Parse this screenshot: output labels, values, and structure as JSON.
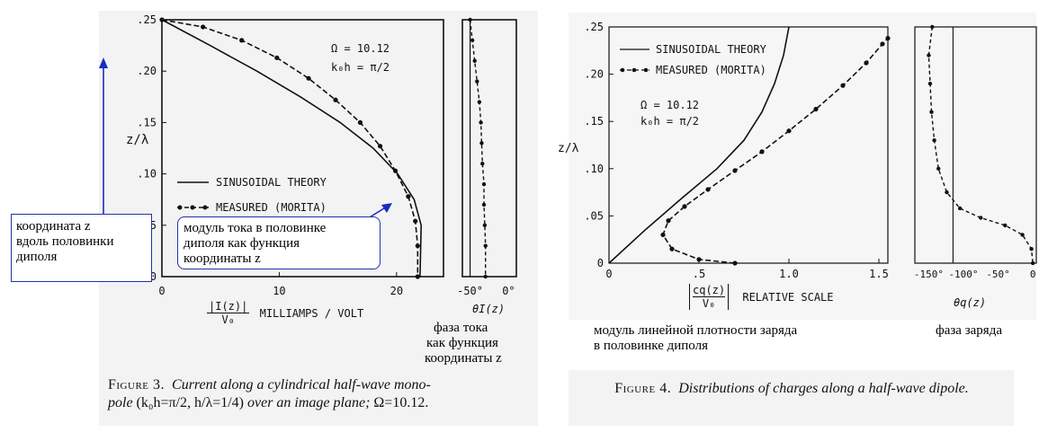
{
  "figure3": {
    "ylabel": "z/λ",
    "yticks": [
      ".25",
      ".20",
      ".15",
      ".10",
      ".05",
      "0"
    ],
    "xticks": [
      "0",
      "10",
      "20"
    ],
    "xlabel_frac_num": "|I(z)|",
    "xlabel_frac_den": "V₀",
    "xlabel_unit": "MILLIAMPS / VOLT",
    "omega": "Ω = 10.12",
    "koh": "k₀h = π/2",
    "legend_theory": "SINUSOIDAL THEORY",
    "legend_measured": "MEASURED (MORITA)",
    "phase_xticks": [
      "-50°",
      "0°"
    ],
    "phase_label": "θI(z)",
    "caption_fig": "Figure 3.",
    "caption_italic1": "Current along a cylindrical half-wave mono-",
    "caption_italic2": "pole",
    "caption_plain": "(k₀h=π/2, h/λ=1/4)",
    "caption_italic3": "over an image plane;",
    "caption_end": "Ω=10.12."
  },
  "figure4": {
    "ylabel": "z/λ",
    "yticks": [
      ".25",
      ".20",
      ".15",
      ".10",
      ".05",
      "0"
    ],
    "xticks": [
      "0",
      ".5",
      "1.0",
      "1.5"
    ],
    "xlabel_frac_num": "cq(z)",
    "xlabel_frac_den": "V₀",
    "xlabel_unit": "RELATIVE SCALE",
    "omega": "Ω = 10.12",
    "koh": "k₀h = π/2",
    "legend_theory": "SINUSOIDAL THEORY",
    "legend_measured": "MEASURED (MORITA)",
    "phase_xticks": [
      "-150°",
      "-100°",
      "-50°",
      "0"
    ],
    "phase_label": "θq(z)",
    "caption_fig": "Figure 4.",
    "caption_italic": "Distributions of charges along a half-wave dipole."
  },
  "annotations": {
    "coord": "координата z вдоль половинки диполя",
    "coord_line1": "координата z",
    "coord_line2": "вдоль половинки",
    "coord_line3": "диполя",
    "current_mod_1": "модуль тока в половинке",
    "current_mod_2": "диполя  как функция",
    "current_mod_3": "координаты z",
    "phase_cur_1": "фаза тока",
    "phase_cur_2": "как функция",
    "phase_cur_3": "координаты z",
    "charge_mod_1": "модуль линейной плотности заряда",
    "charge_mod_2": "в половинке диполя",
    "charge_phase": "фаза заряда"
  },
  "chart_data": [
    {
      "type": "line",
      "title": "Current along a cylindrical half-wave monopole",
      "xlabel": "|I(z)|/V₀ MILLIAMPS / VOLT",
      "ylabel": "z/λ",
      "xlim": [
        0,
        24
      ],
      "ylim": [
        0,
        0.25
      ],
      "series": [
        {
          "name": "SINUSOIDAL THEORY",
          "x": [
            0,
            4.1,
            8.1,
            11.8,
            15.2,
            18.0,
            20.1,
            21.5,
            22.1,
            22.0
          ],
          "y": [
            0.25,
            0.225,
            0.2,
            0.175,
            0.15,
            0.125,
            0.1,
            0.075,
            0.05,
            0
          ]
        },
        {
          "name": "MEASURED (MORITA)",
          "x": [
            0,
            3.5,
            6.8,
            9.8,
            12.5,
            14.8,
            16.9,
            18.6,
            19.9,
            21.0,
            21.6,
            21.8,
            21.8
          ],
          "y": [
            0.25,
            0.243,
            0.23,
            0.213,
            0.193,
            0.172,
            0.15,
            0.127,
            0.103,
            0.078,
            0.054,
            0.03,
            0.0
          ]
        }
      ],
      "phase": {
        "xlabel": "θI(z)",
        "xlim": [
          -60,
          10
        ],
        "ylim": [
          0,
          0.25
        ],
        "x": [
          -50,
          -47,
          -44,
          -41,
          -38,
          -36,
          -35,
          -34,
          -32,
          -32,
          -31,
          -30,
          -30
        ],
        "y": [
          0.25,
          0.23,
          0.21,
          0.19,
          0.17,
          0.15,
          0.13,
          0.11,
          0.09,
          0.07,
          0.05,
          0.03,
          0.0
        ]
      }
    },
    {
      "type": "line",
      "title": "Distributions of charges along a half-wave dipole",
      "xlabel": "|cq(z)/V₀| RELATIVE SCALE",
      "ylabel": "z/λ",
      "xlim": [
        0,
        1.55
      ],
      "ylim": [
        0,
        0.25
      ],
      "series": [
        {
          "name": "SINUSOIDAL THEORY",
          "x": [
            0,
            0.2,
            0.4,
            0.6,
            0.75,
            0.85,
            0.92,
            0.97,
            1.0
          ],
          "y": [
            0,
            0.035,
            0.068,
            0.1,
            0.13,
            0.16,
            0.19,
            0.22,
            0.25
          ]
        },
        {
          "name": "MEASURED (MORITA)",
          "x": [
            0.7,
            0.5,
            0.35,
            0.3,
            0.33,
            0.42,
            0.55,
            0.7,
            0.85,
            1.0,
            1.15,
            1.3,
            1.43,
            1.52,
            1.55
          ],
          "y": [
            0,
            0.004,
            0.015,
            0.03,
            0.045,
            0.06,
            0.078,
            0.098,
            0.118,
            0.14,
            0.163,
            0.188,
            0.212,
            0.232,
            0.238
          ]
        }
      ],
      "phase": {
        "xlabel": "θq(z)",
        "xlim": [
          -170,
          5
        ],
        "ylim": [
          0,
          0.25
        ],
        "x": [
          -145,
          -150,
          -148,
          -146,
          -142,
          -136,
          -124,
          -105,
          -75,
          -40,
          -15,
          -2,
          0
        ],
        "y": [
          0.25,
          0.22,
          0.19,
          0.16,
          0.13,
          0.1,
          0.075,
          0.058,
          0.048,
          0.04,
          0.03,
          0.015,
          0
        ]
      }
    }
  ]
}
